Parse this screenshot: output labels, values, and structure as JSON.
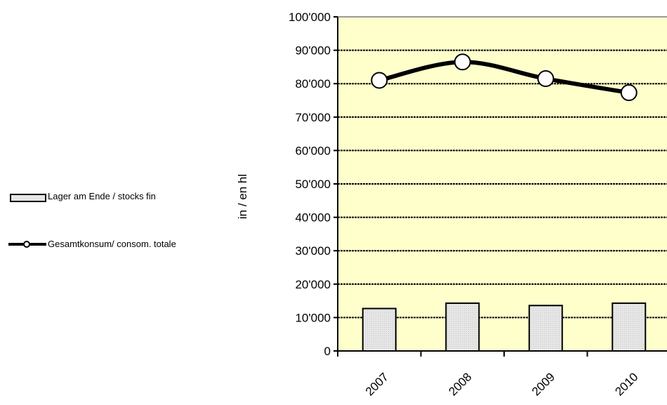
{
  "chart_data": {
    "type": "bar",
    "title": "",
    "xlabel": "",
    "ylabel": "in / en hl",
    "categories": [
      "2007",
      "2008",
      "2009",
      "2010"
    ],
    "ylim": [
      0,
      100000
    ],
    "yticks": [
      0,
      10000,
      20000,
      30000,
      40000,
      50000,
      60000,
      70000,
      80000,
      90000,
      100000
    ],
    "ytick_labels": [
      "0",
      "10'000",
      "20'000",
      "30'000",
      "40'000",
      "50'000",
      "60'000",
      "70'000",
      "80'000",
      "90'000",
      "100'000"
    ],
    "grid": true,
    "legend_position": "left",
    "plot_background": "#ffffcc",
    "series": [
      {
        "name": "Lager am Ende / stocks fin",
        "kind": "bar",
        "color": "#e6e6e6",
        "values": [
          12700,
          14300,
          13600,
          14300
        ]
      },
      {
        "name": "Gesamtkonsum/ consom. totale",
        "kind": "line",
        "color": "#000000",
        "values": [
          81000,
          86500,
          81500,
          77300
        ]
      }
    ]
  }
}
